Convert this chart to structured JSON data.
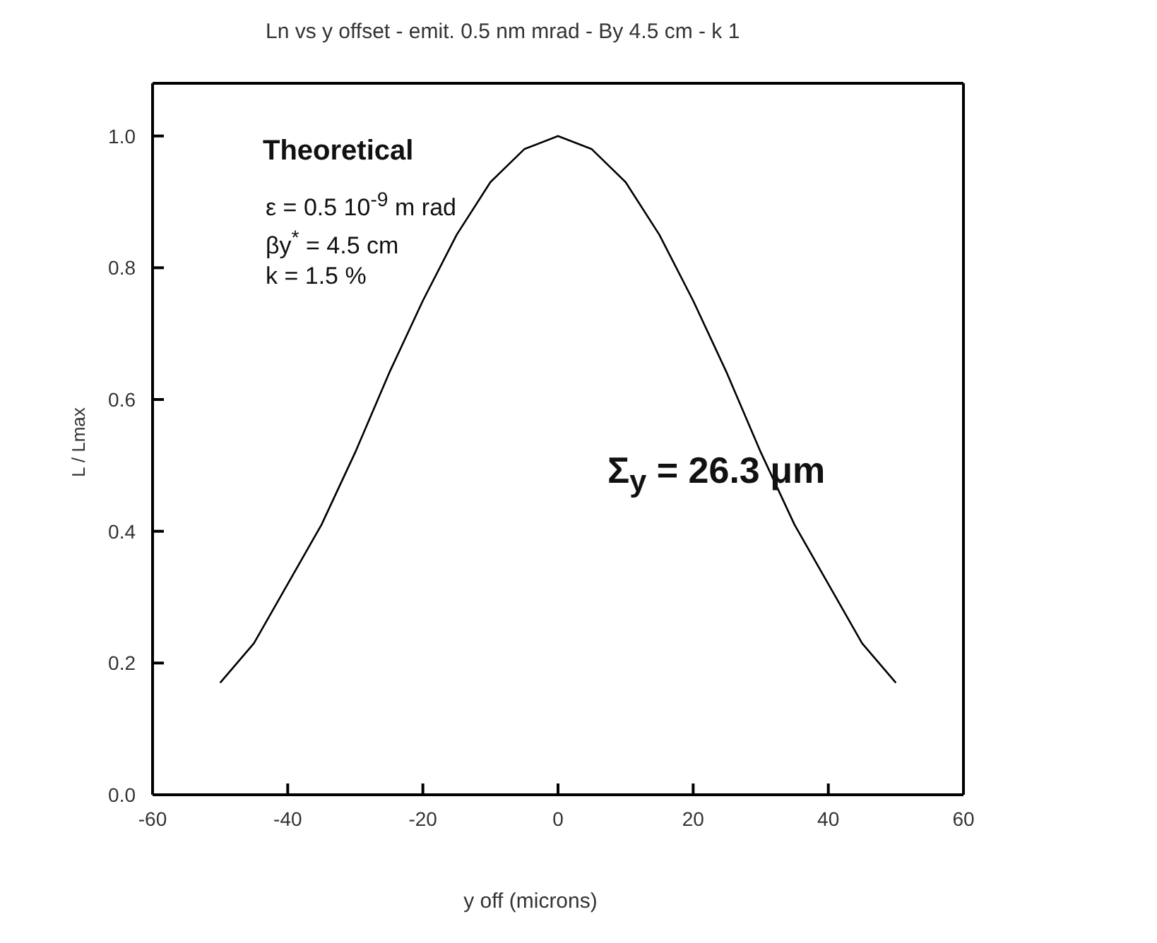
{
  "chart_data": {
    "type": "line",
    "title": "Ln vs y offset - emit. 0.5 nm mrad - By 4.5 cm - k 1",
    "xlabel": "y off (microns)",
    "ylabel": "L / Lmax",
    "x": [
      -50,
      -45,
      -40,
      -35,
      -30,
      -25,
      -20,
      -15,
      -10,
      -5,
      0,
      5,
      10,
      15,
      20,
      25,
      30,
      35,
      40,
      45,
      50
    ],
    "series": [
      {
        "color": "#000000",
        "values": [
          0.17,
          0.23,
          0.32,
          0.41,
          0.52,
          0.64,
          0.75,
          0.85,
          0.93,
          0.98,
          1.0,
          0.98,
          0.93,
          0.85,
          0.75,
          0.64,
          0.52,
          0.41,
          0.32,
          0.23,
          0.17
        ]
      }
    ],
    "xlim": [
      -60,
      60
    ],
    "xticks": [
      -60,
      -40,
      -20,
      0,
      20,
      40,
      60
    ],
    "ylim": [
      0,
      1.08
    ],
    "yticks": [
      {
        "value": 0,
        "label": "0.0"
      },
      0.2,
      0.4,
      0.6,
      0.8,
      {
        "value": 1,
        "label": "1.0"
      }
    ],
    "marker": "none",
    "line_style": "solid",
    "annotations": [
      "Theoretical",
      "ε = 0.5 10$^{-9}$ m rad",
      "βy$^{*}$ = 4.5 cm",
      "k = 1.5 %",
      "Σ$_{y}$ = 26.3 μm"
    ]
  }
}
